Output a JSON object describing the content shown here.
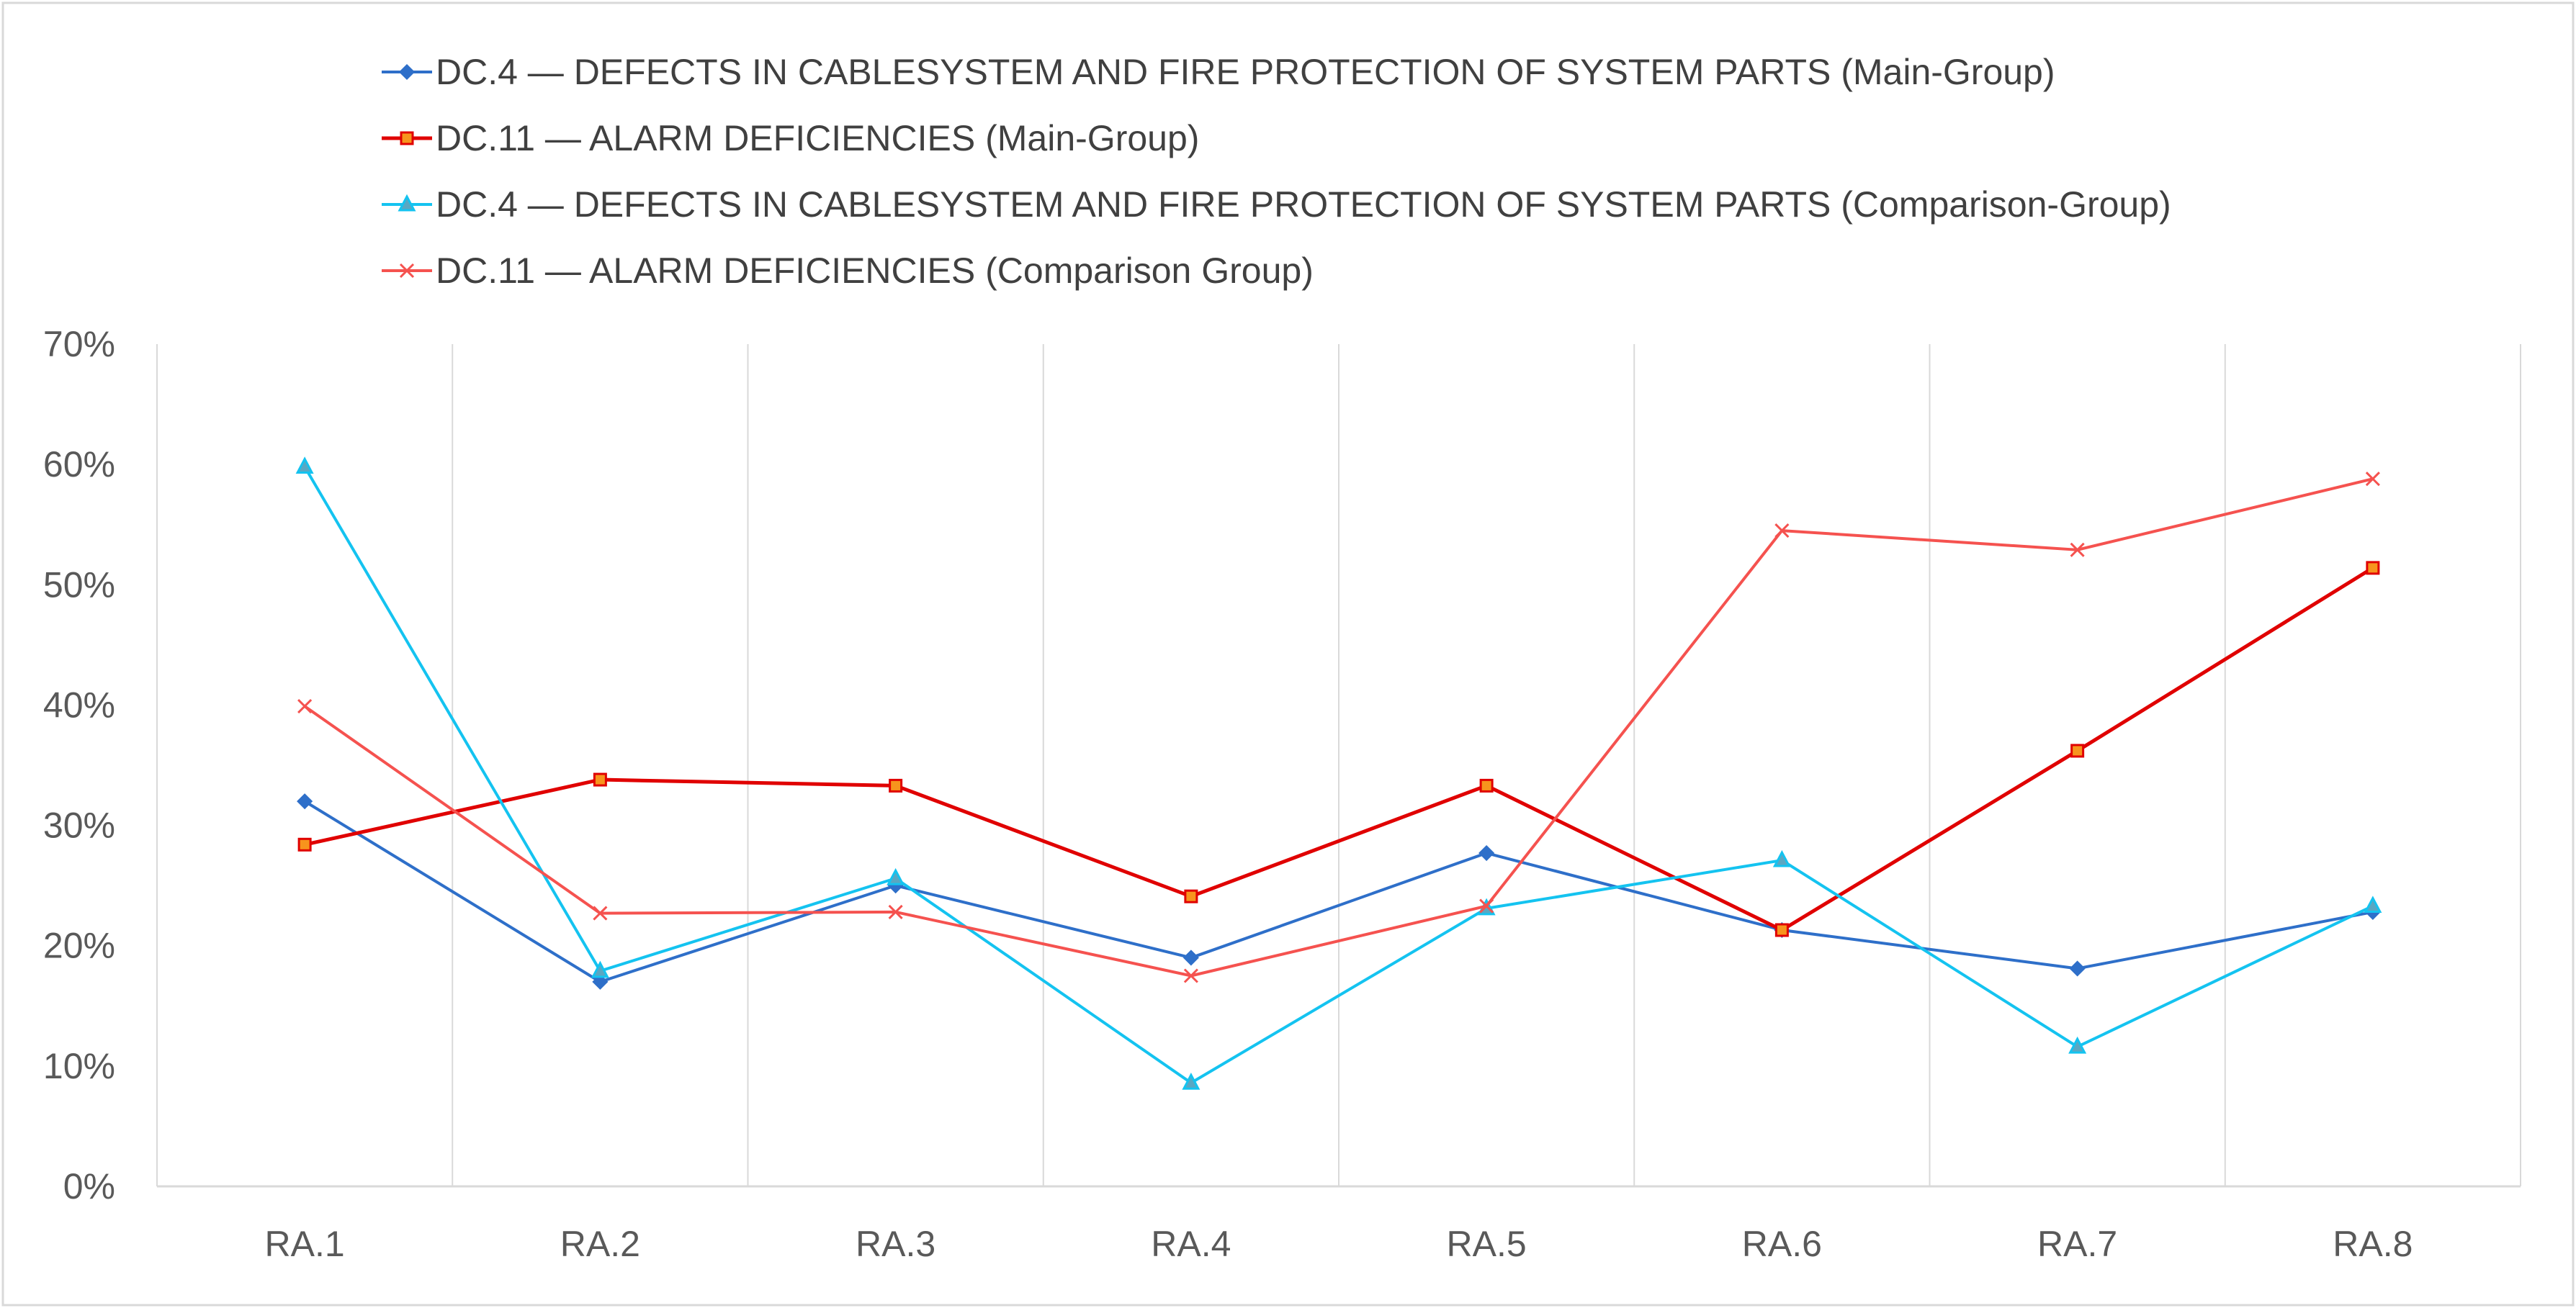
{
  "chart_data": {
    "type": "line",
    "title": "",
    "xlabel": "",
    "ylabel": "",
    "categories": [
      "RA.1",
      "RA.2",
      "RA.3",
      "RA.4",
      "RA.5",
      "RA.6",
      "RA.7",
      "RA.8"
    ],
    "ylim": [
      0,
      0.7
    ],
    "yticks": [
      0,
      0.1,
      0.2,
      0.3,
      0.4,
      0.5,
      0.6,
      0.7
    ],
    "ytick_labels": [
      "0%",
      "10%",
      "20%",
      "30%",
      "40%",
      "50%",
      "60%",
      "70%"
    ],
    "grid": "vertical",
    "legend_position": "top",
    "series": [
      {
        "name": "DC.4 — DEFECTS IN CABLESYSTEM AND FIRE PROTECTION OF SYSTEM PARTS (Main-Group)",
        "color": "#2E6FC9",
        "marker": "diamond",
        "values": [
          0.32,
          0.17,
          0.25,
          0.19,
          0.277,
          0.213,
          0.181,
          0.228
        ]
      },
      {
        "name": "DC.11 — ALARM DEFICIENCIES (Main-Group)",
        "color": "#E00000",
        "marker": "square",
        "values": [
          0.284,
          0.338,
          0.333,
          0.241,
          0.333,
          0.213,
          0.362,
          0.514
        ]
      },
      {
        "name": "DC.4 — DEFECTS IN CABLESYSTEM AND FIRE PROTECTION OF SYSTEM PARTS (Comparison-Group)",
        "color": "#14C3F0",
        "marker": "triangle",
        "values": [
          0.598,
          0.179,
          0.256,
          0.086,
          0.231,
          0.271,
          0.116,
          0.233
        ]
      },
      {
        "name": "DC.11 — ALARM DEFICIENCIES (Comparison Group)",
        "color": "#F5524F",
        "marker": "x",
        "values": [
          0.399,
          0.227,
          0.228,
          0.175,
          0.233,
          0.545,
          0.529,
          0.588
        ]
      }
    ]
  }
}
